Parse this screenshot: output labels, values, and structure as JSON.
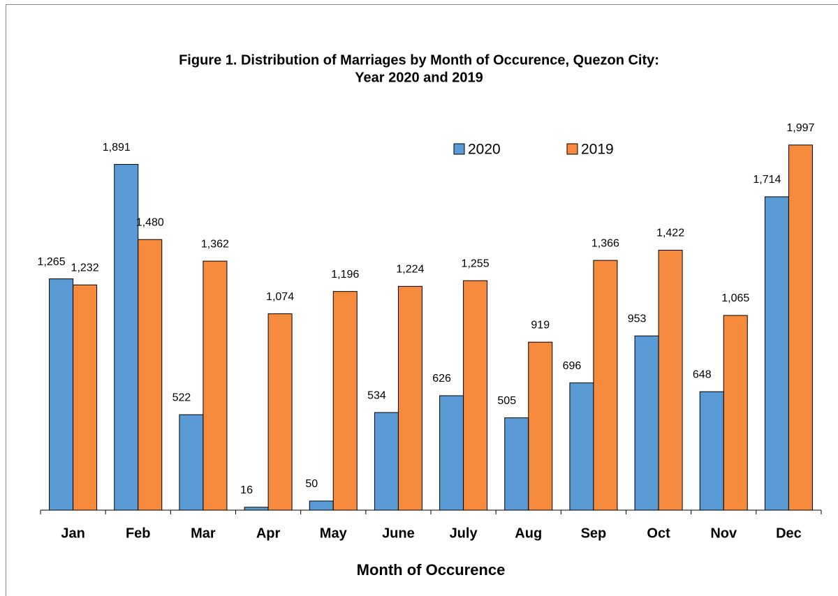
{
  "chart_data": {
    "type": "bar",
    "title": "Figure 1. Distribution of Marriages by Month of Occurence, Quezon City:",
    "subtitle": "Year 2020 and 2019",
    "x_label": "Month of Occurence",
    "categories": [
      "Jan",
      "Feb",
      "Mar",
      "Apr",
      "May",
      "June",
      "July",
      "Aug",
      "Sep",
      "Oct",
      "Nov",
      "Dec"
    ],
    "series": [
      {
        "name": "2020",
        "color": "#5b9bd5",
        "values": [
          1265,
          1891,
          522,
          16,
          50,
          534,
          626,
          505,
          696,
          953,
          648,
          1714
        ],
        "value_labels": [
          "1,265",
          "1,891",
          "522",
          "16",
          "50",
          "534",
          "626",
          "505",
          "696",
          "953",
          "648",
          "1,714"
        ]
      },
      {
        "name": "2019",
        "color": "#f68b3e",
        "values": [
          1232,
          1480,
          1362,
          1074,
          1196,
          1224,
          1255,
          919,
          1366,
          1422,
          1065,
          1997
        ],
        "value_labels": [
          "1,232",
          "1,480",
          "1,362",
          "1,074",
          "1,196",
          "1,224",
          "1,255",
          "919",
          "1,366",
          "1,422",
          "1,065",
          "1,997"
        ]
      }
    ],
    "ylim": [
      0,
      2000
    ]
  }
}
